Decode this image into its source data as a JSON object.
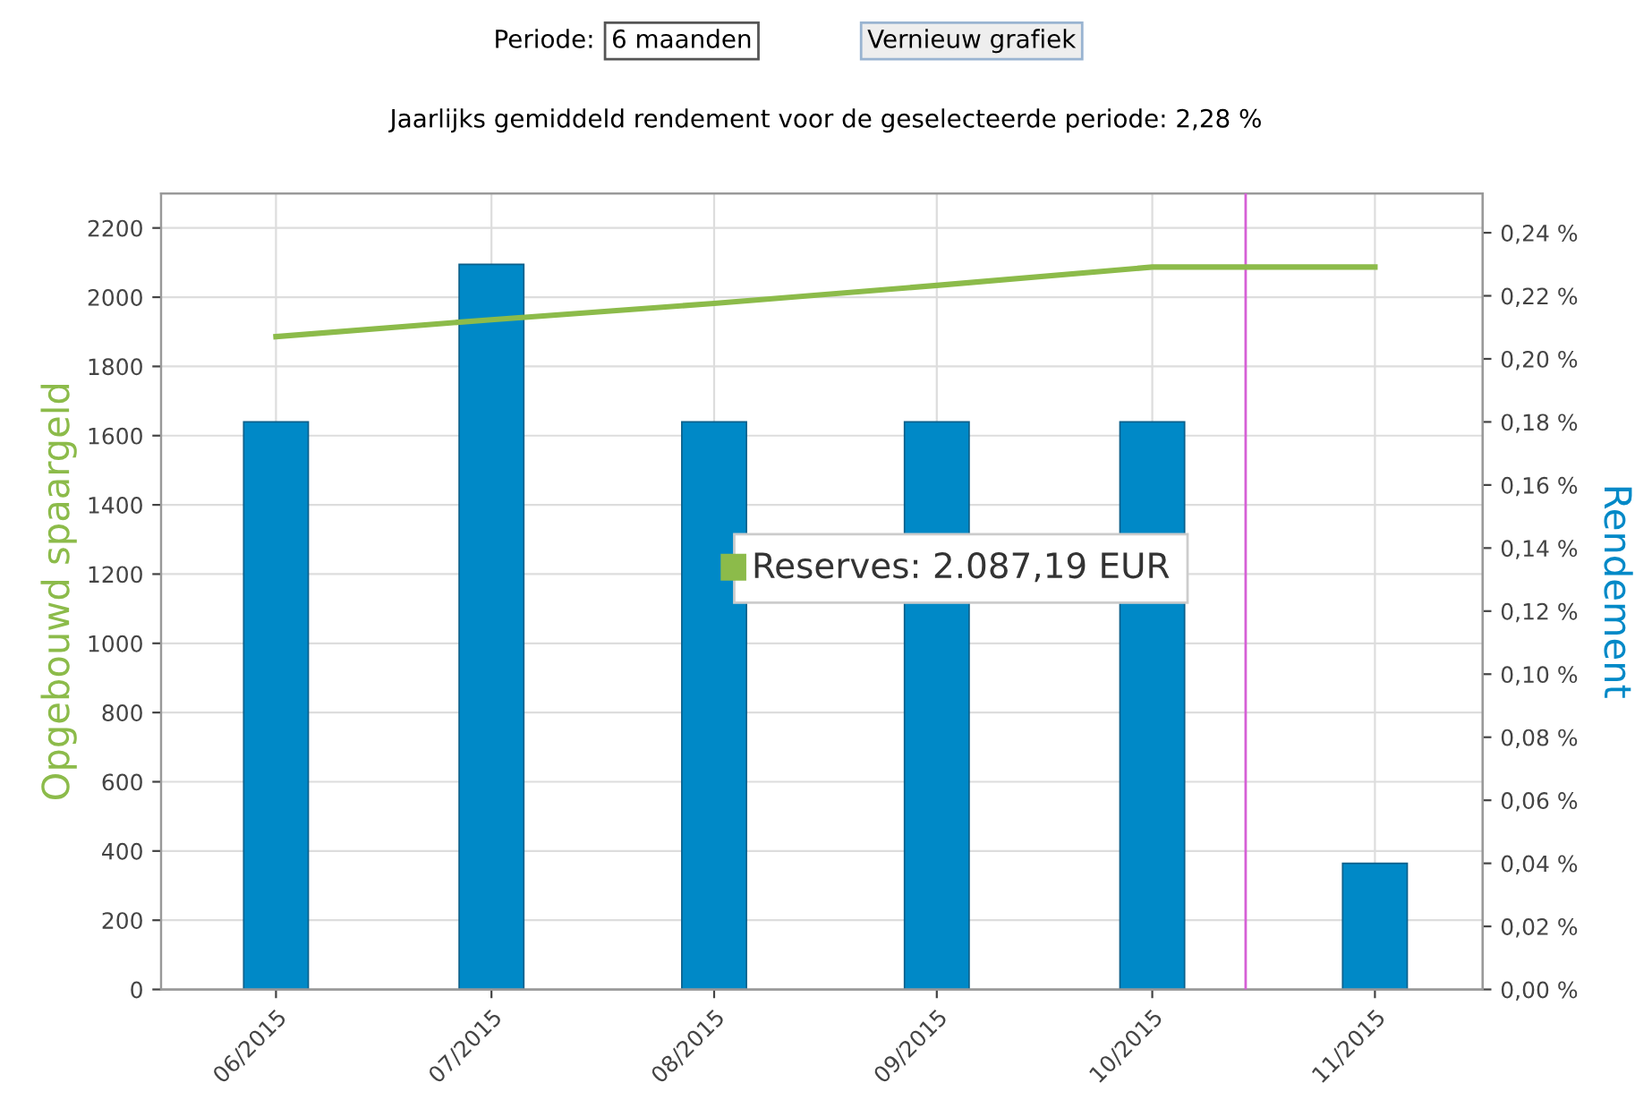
{
  "chart_data": {
    "type": "bar",
    "title": "Jaarlijks gemiddeld rendement voor de geselecteerde periode: 2,28 %",
    "ylabel": "Opgebouwd spaargeld",
    "y2label": "Rendement",
    "x": [
      "2015-06",
      "2015-07",
      "2015-08",
      "2015-09",
      "2015-10",
      "2015-11"
    ],
    "xlim": [
      "2015-05-16",
      "2015-11-16"
    ],
    "xticks": [
      {
        "value": "2015-06",
        "label": "06/2015"
      },
      {
        "value": "2015-07",
        "label": "07/2015"
      },
      {
        "value": "2015-08",
        "label": "08/2015"
      },
      {
        "value": "2015-09",
        "label": "09/2015"
      },
      {
        "value": "2015-10",
        "label": "10/2015"
      },
      {
        "value": "2015-11",
        "label": "11/2015"
      }
    ],
    "series": [
      {
        "axis": "y2",
        "color": "#0089c7",
        "values": [
          0.18,
          0.23,
          0.18,
          0.18,
          0.18,
          0.04
        ]
      },
      {
        "type": "line",
        "axis": "y",
        "color": "#8cbb4a",
        "values": [
          1886,
          1935,
          1982,
          2034,
          2087,
          2087
        ]
      }
    ],
    "ylim": [
      0,
      2300
    ],
    "yticks": [
      0,
      200,
      400,
      600,
      800,
      1000,
      1200,
      1400,
      1600,
      1800,
      2000,
      2200
    ],
    "y2lim": [
      0,
      0.2525
    ],
    "y2ticks": [
      {
        "value": 0,
        "label": "0,00 %"
      },
      {
        "value": 0.02,
        "label": "0,02 %"
      },
      {
        "value": 0.04,
        "label": "0,04 %"
      },
      {
        "value": 0.06,
        "label": "0,06 %"
      },
      {
        "value": 0.08,
        "label": "0,08 %"
      },
      {
        "value": 0.1,
        "label": "0,10 %"
      },
      {
        "value": 0.12,
        "label": "0,12 %"
      },
      {
        "value": 0.14,
        "label": "0,14 %"
      },
      {
        "value": 0.16,
        "label": "0,16 %"
      },
      {
        "value": 0.18,
        "label": "0,18 %"
      },
      {
        "value": 0.2,
        "label": "0,20 %"
      },
      {
        "value": 0.22,
        "label": "0,22 %"
      },
      {
        "value": 0.24,
        "label": "0,24 %"
      }
    ],
    "ref_lines": [
      {
        "axis": "x",
        "value": "2015-10-14",
        "color": "#d660d6"
      }
    ],
    "grid": true,
    "annotations": [
      "Periode:",
      "6 maanden",
      "Vernieuw grafiek",
      "Reserves: 2.087,19 EUR"
    ]
  }
}
